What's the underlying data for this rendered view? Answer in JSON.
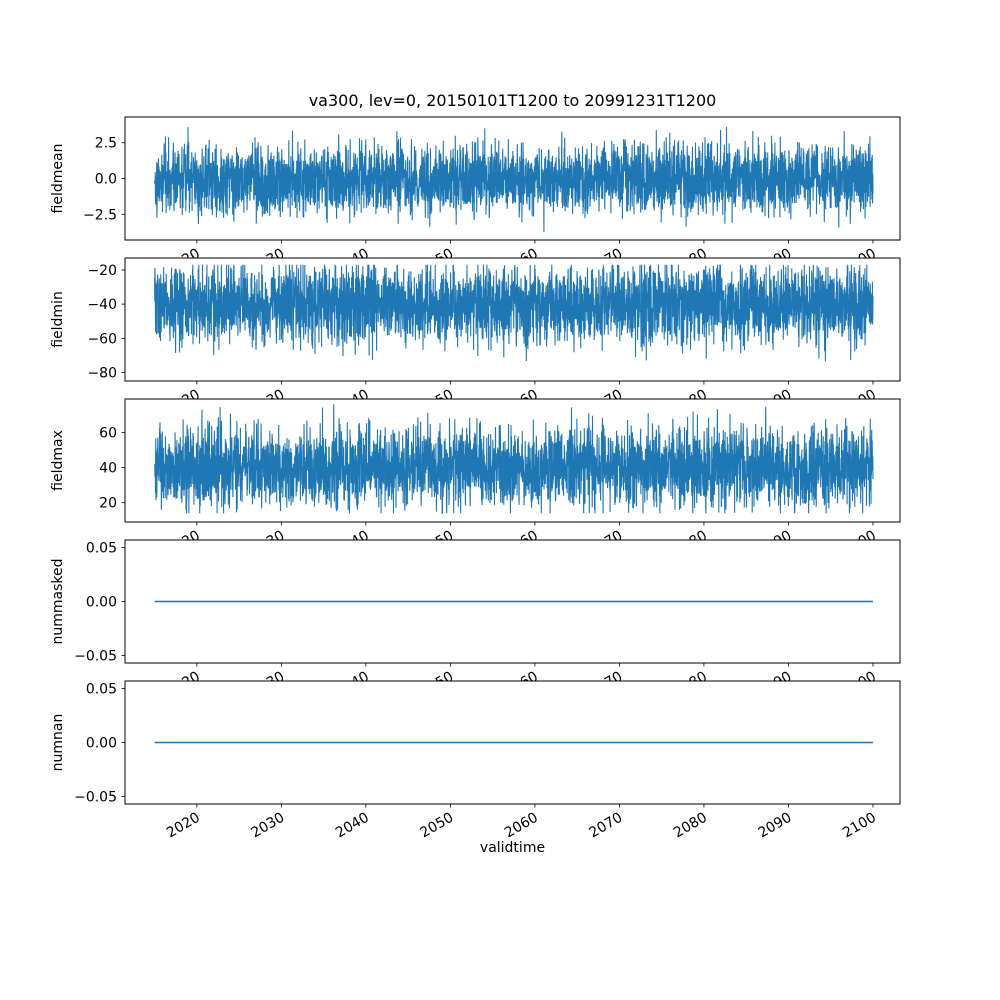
{
  "figure": {
    "background": "#ffffff",
    "axes_edge_color": "#000000"
  },
  "chart_data": {
    "type": "line",
    "title": "va300, lev=0, 20150101T1200 to 20991231T1200",
    "xlabel": "validtime",
    "x_range": [
      2015,
      2100
    ],
    "xlim": [
      2011.5,
      2103.2
    ],
    "xticks": [
      2020,
      2030,
      2040,
      2050,
      2060,
      2070,
      2080,
      2090,
      2100
    ],
    "xtick_labels": [
      "2020",
      "2030",
      "2040",
      "2050",
      "2060",
      "2070",
      "2080",
      "2090",
      "2100"
    ],
    "line_color": "#1f77b4",
    "grid": false,
    "legend": "none",
    "n_points": 4000,
    "seed": 1337,
    "subplots": [
      {
        "ylabel": "fieldmean",
        "ylim": [
          -4.3,
          4.3
        ],
        "ytick_values": [
          2.5,
          0.0,
          -2.5
        ],
        "ytick_labels": [
          "2.5",
          "0.0",
          "−2.5"
        ],
        "signal": {
          "kind": "noise",
          "mean": 0.0,
          "std": 1.2,
          "clip_low": -4.1,
          "clip_high": 4.1
        }
      },
      {
        "ylabel": "fieldmin",
        "ylim": [
          -85,
          -13
        ],
        "ytick_values": [
          -20,
          -40,
          -60,
          -80
        ],
        "ytick_labels": [
          "−20",
          "−40",
          "−60",
          "−80"
        ],
        "signal": {
          "kind": "noise",
          "mean": -40,
          "std": 11.5,
          "clip_low": -78.5,
          "clip_high": -17
        }
      },
      {
        "ylabel": "fieldmax",
        "ylim": [
          9,
          79
        ],
        "ytick_values": [
          60,
          40,
          20
        ],
        "ytick_labels": [
          "60",
          "40",
          "20"
        ],
        "signal": {
          "kind": "noise",
          "mean": 40,
          "std": 11.5,
          "clip_low": 14,
          "clip_high": 76
        }
      },
      {
        "ylabel": "nummasked",
        "ylim": [
          -0.057,
          0.057
        ],
        "ytick_values": [
          0.05,
          0.0,
          -0.05
        ],
        "ytick_labels": [
          "0.05",
          "0.00",
          "−0.05"
        ],
        "signal": {
          "kind": "constant",
          "value": 0.0
        }
      },
      {
        "ylabel": "numnan",
        "ylim": [
          -0.057,
          0.057
        ],
        "ytick_values": [
          0.05,
          0.0,
          -0.05
        ],
        "ytick_labels": [
          "0.05",
          "0.00",
          "−0.05"
        ],
        "signal": {
          "kind": "constant",
          "value": 0.0
        }
      }
    ]
  }
}
